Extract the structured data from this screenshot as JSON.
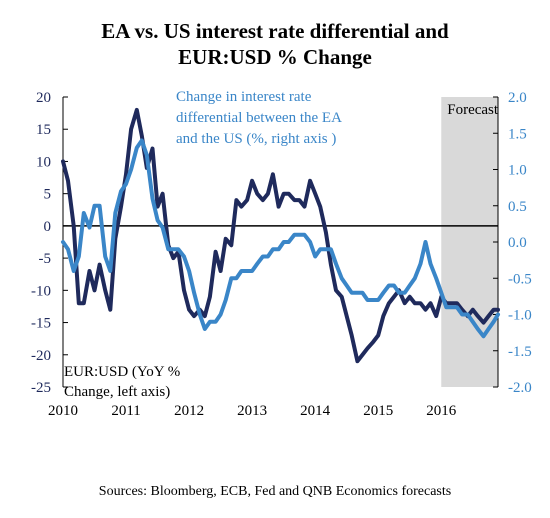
{
  "title_line1": "EA vs. US  interest rate differential and",
  "title_line2": "EUR:USD % Change",
  "source": "Sources: Bloomberg, ECB,  Fed and QNB Economics forecasts",
  "chart_data": {
    "type": "line",
    "title": "EA vs. US  interest rate differential and EUR:USD % Change",
    "forecast_label": "Forecast",
    "forecast_region": {
      "x_start": 2016.0,
      "x_end": 2016.9
    },
    "x_ticks": [
      "2010",
      "2011",
      "2012",
      "2013",
      "2014",
      "2015",
      "2016"
    ],
    "xlim": [
      2010,
      2016.9
    ],
    "y_left": {
      "lim": [
        -25,
        20
      ],
      "ticks": [
        "20",
        "15",
        "10",
        "5",
        "0",
        "-5",
        "-10",
        "-15",
        "-20",
        "-25"
      ]
    },
    "y_right": {
      "lim": [
        -2.0,
        2.0
      ],
      "ticks": [
        "2.0",
        "1.5",
        "1.0",
        "0.5",
        "0.0",
        "-0.5",
        "-1.0",
        "-1.5",
        "-2.0"
      ]
    },
    "grid": false,
    "colors": {
      "eurusd": "#1f2a5c",
      "diff": "#3a86c8",
      "forecast_bg": "#d9d9d9"
    },
    "series": [
      {
        "name": "EUR:USD (YoY % Change, left axis)",
        "label_lines": [
          "EUR:USD (YoY %",
          "Change, left axis)"
        ],
        "axis": "left",
        "x": [
          2010.0,
          2010.08,
          2010.17,
          2010.25,
          2010.33,
          2010.42,
          2010.5,
          2010.58,
          2010.67,
          2010.75,
          2010.83,
          2010.92,
          2011.0,
          2011.08,
          2011.17,
          2011.25,
          2011.33,
          2011.42,
          2011.5,
          2011.58,
          2011.67,
          2011.75,
          2011.83,
          2011.92,
          2012.0,
          2012.08,
          2012.17,
          2012.25,
          2012.33,
          2012.42,
          2012.5,
          2012.58,
          2012.67,
          2012.75,
          2012.83,
          2012.92,
          2013.0,
          2013.08,
          2013.17,
          2013.25,
          2013.33,
          2013.42,
          2013.5,
          2013.58,
          2013.67,
          2013.75,
          2013.83,
          2013.92,
          2014.0,
          2014.08,
          2014.17,
          2014.25,
          2014.33,
          2014.42,
          2014.5,
          2014.58,
          2014.67,
          2014.75,
          2014.83,
          2014.92,
          2015.0,
          2015.08,
          2015.17,
          2015.25,
          2015.33,
          2015.42,
          2015.5,
          2015.58,
          2015.67,
          2015.75,
          2015.83,
          2015.92,
          2016.0,
          2016.08,
          2016.17,
          2016.25,
          2016.33,
          2016.42,
          2016.5,
          2016.58,
          2016.67,
          2016.75,
          2016.83,
          2016.9
        ],
        "y": [
          10,
          7,
          0,
          -12,
          -12,
          -7,
          -10,
          -6,
          -10,
          -13,
          -2,
          3,
          8,
          15,
          18,
          14,
          9,
          12,
          3,
          5,
          -3,
          -5,
          -4,
          -10,
          -13,
          -14,
          -13,
          -14,
          -11,
          -4,
          -7,
          -2,
          -3,
          4,
          3,
          4,
          7,
          5,
          4,
          5,
          8,
          3,
          5,
          5,
          4,
          4,
          3,
          7,
          5,
          3,
          -1,
          -6,
          -10,
          -11,
          -14,
          -17,
          -21,
          -20,
          -19,
          -18,
          -17,
          -14,
          -12,
          -11,
          -10,
          -12,
          -11,
          -12,
          -12,
          -13,
          -12,
          -14,
          -11,
          -12,
          -12,
          -12,
          -13,
          -14,
          -13,
          -14,
          -15,
          -14,
          -13,
          -13
        ]
      },
      {
        "name": "Change in interest rate differential between the EA and the US (%, right axis )",
        "label_lines": [
          "Change in interest rate",
          "differential between the EA",
          "and the US (%, right axis )"
        ],
        "axis": "right",
        "x": [
          2010.0,
          2010.08,
          2010.17,
          2010.25,
          2010.33,
          2010.42,
          2010.5,
          2010.58,
          2010.67,
          2010.75,
          2010.83,
          2010.92,
          2011.0,
          2011.08,
          2011.17,
          2011.25,
          2011.33,
          2011.42,
          2011.5,
          2011.58,
          2011.67,
          2011.75,
          2011.83,
          2011.92,
          2012.0,
          2012.08,
          2012.17,
          2012.25,
          2012.33,
          2012.42,
          2012.5,
          2012.58,
          2012.67,
          2012.75,
          2012.83,
          2012.92,
          2013.0,
          2013.08,
          2013.17,
          2013.25,
          2013.33,
          2013.42,
          2013.5,
          2013.58,
          2013.67,
          2013.75,
          2013.83,
          2013.92,
          2014.0,
          2014.08,
          2014.17,
          2014.25,
          2014.33,
          2014.42,
          2014.5,
          2014.58,
          2014.67,
          2014.75,
          2014.83,
          2014.92,
          2015.0,
          2015.08,
          2015.17,
          2015.25,
          2015.33,
          2015.42,
          2015.5,
          2015.58,
          2015.67,
          2015.75,
          2015.83,
          2015.92,
          2016.0,
          2016.08,
          2016.17,
          2016.25,
          2016.33,
          2016.42,
          2016.5,
          2016.58,
          2016.67,
          2016.75,
          2016.83,
          2016.9
        ],
        "y": [
          0.0,
          -0.1,
          -0.4,
          -0.2,
          0.4,
          0.2,
          0.5,
          0.5,
          -0.2,
          -0.4,
          0.4,
          0.7,
          0.8,
          1.0,
          1.3,
          1.4,
          1.2,
          0.6,
          0.3,
          0.2,
          -0.1,
          -0.1,
          -0.1,
          -0.2,
          -0.4,
          -0.7,
          -1.0,
          -1.2,
          -1.1,
          -1.1,
          -1.0,
          -0.8,
          -0.5,
          -0.5,
          -0.4,
          -0.4,
          -0.4,
          -0.3,
          -0.2,
          -0.2,
          -0.1,
          -0.1,
          0.0,
          0.0,
          0.1,
          0.1,
          0.1,
          0.0,
          -0.2,
          -0.1,
          -0.1,
          -0.1,
          -0.3,
          -0.5,
          -0.6,
          -0.7,
          -0.7,
          -0.7,
          -0.8,
          -0.8,
          -0.8,
          -0.7,
          -0.6,
          -0.6,
          -0.7,
          -0.7,
          -0.6,
          -0.5,
          -0.3,
          0.0,
          -0.3,
          -0.5,
          -0.7,
          -0.9,
          -0.9,
          -0.9,
          -1.0,
          -1.0,
          -1.1,
          -1.2,
          -1.3,
          -1.2,
          -1.1,
          -1.0
        ]
      }
    ]
  }
}
